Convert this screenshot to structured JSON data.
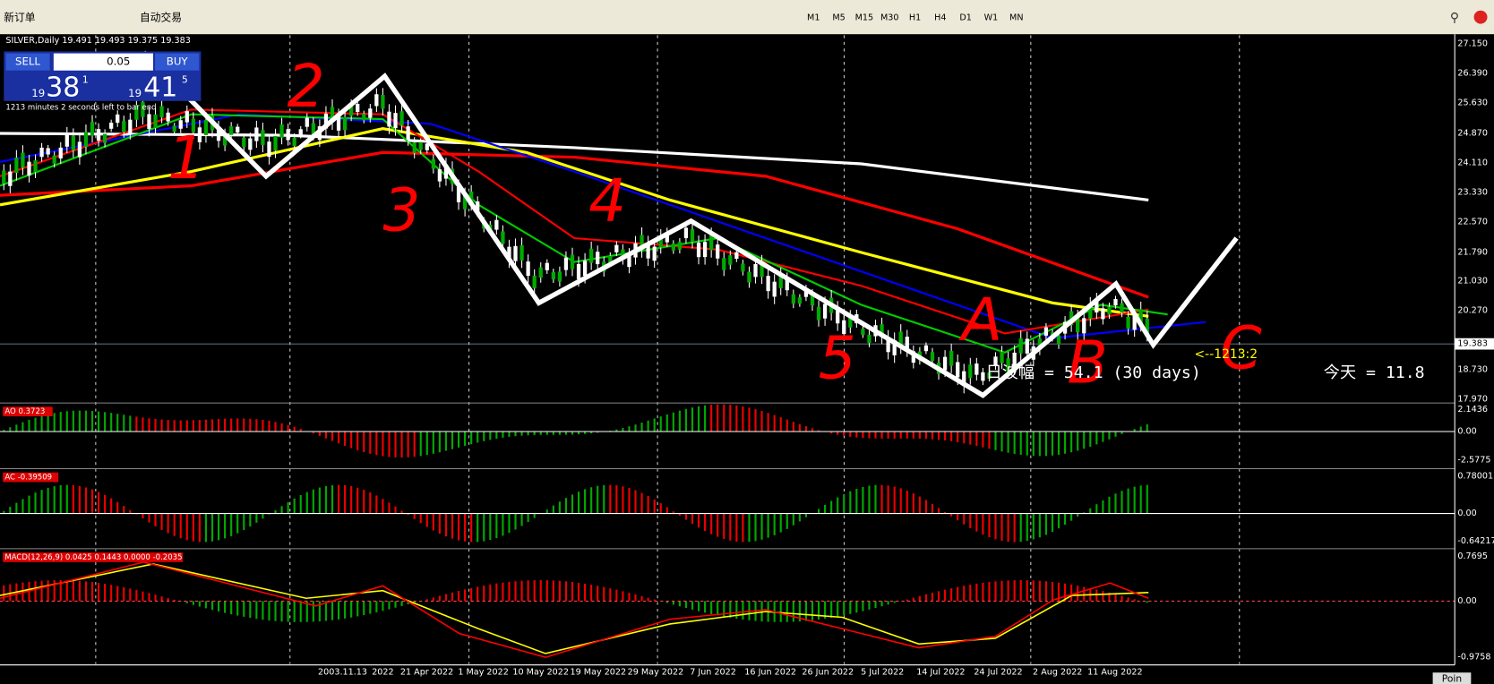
{
  "toolbar": {
    "new_order": "新订单",
    "auto_trading": "自动交易",
    "timeframes": [
      "M1",
      "M5",
      "M15",
      "M30",
      "H1",
      "H4",
      "D1",
      "W1",
      "MN"
    ]
  },
  "chart": {
    "symbol_header": "SILVER,Daily  19.491 19.493 19.375 19.383",
    "price_ticks": [
      "27.150",
      "26.390",
      "25.630",
      "24.870",
      "24.110",
      "23.330",
      "22.570",
      "21.790",
      "21.030",
      "20.270",
      "18.730",
      "17.970"
    ],
    "current_price": "19.383",
    "dates": [
      "2003.11.13",
      "2022",
      "21 Apr 2022",
      "1 May 2022",
      "10 May 2022",
      "19 May 2022",
      "29 May 2022",
      "7 Jun 2022",
      "16 Jun 2022",
      "26 Jun 2022",
      "5 Jul 2022",
      "14 Jul 2022",
      "24 Jul 2022",
      "2 Aug 2022",
      "11 Aug 2022"
    ],
    "countdown": "<--1213:2",
    "range_text": "日波幅 = 54.1  (30 days)",
    "today_text": "今天 = 11.8",
    "wave_labels": [
      "1",
      "2",
      "3",
      "4",
      "5",
      "A",
      "B",
      "C"
    ],
    "corner_button": "Poin"
  },
  "trade_panel": {
    "sell": "SELL",
    "buy": "BUY",
    "lot": "0.05",
    "bid_prefix": "19",
    "bid_big": "38",
    "bid_sup": "1",
    "ask_prefix": "19",
    "ask_big": "41",
    "ask_sup": "5",
    "timer": "1213 minutes 2 seconds left to bar end"
  },
  "indicators": [
    {
      "label": "AO 0.3723",
      "ticks": [
        "2.1436",
        "0.00",
        "-2.5775"
      ]
    },
    {
      "label": "AC -0.39509",
      "ticks": [
        "0.78001",
        "0.00",
        "-0.64217"
      ]
    },
    {
      "label": "MACD(12,26,9) 0.0425 0.1443 0.0000 -0.2035",
      "ticks": [
        "0.7695",
        "0.00",
        "-0.9758"
      ]
    }
  ]
}
